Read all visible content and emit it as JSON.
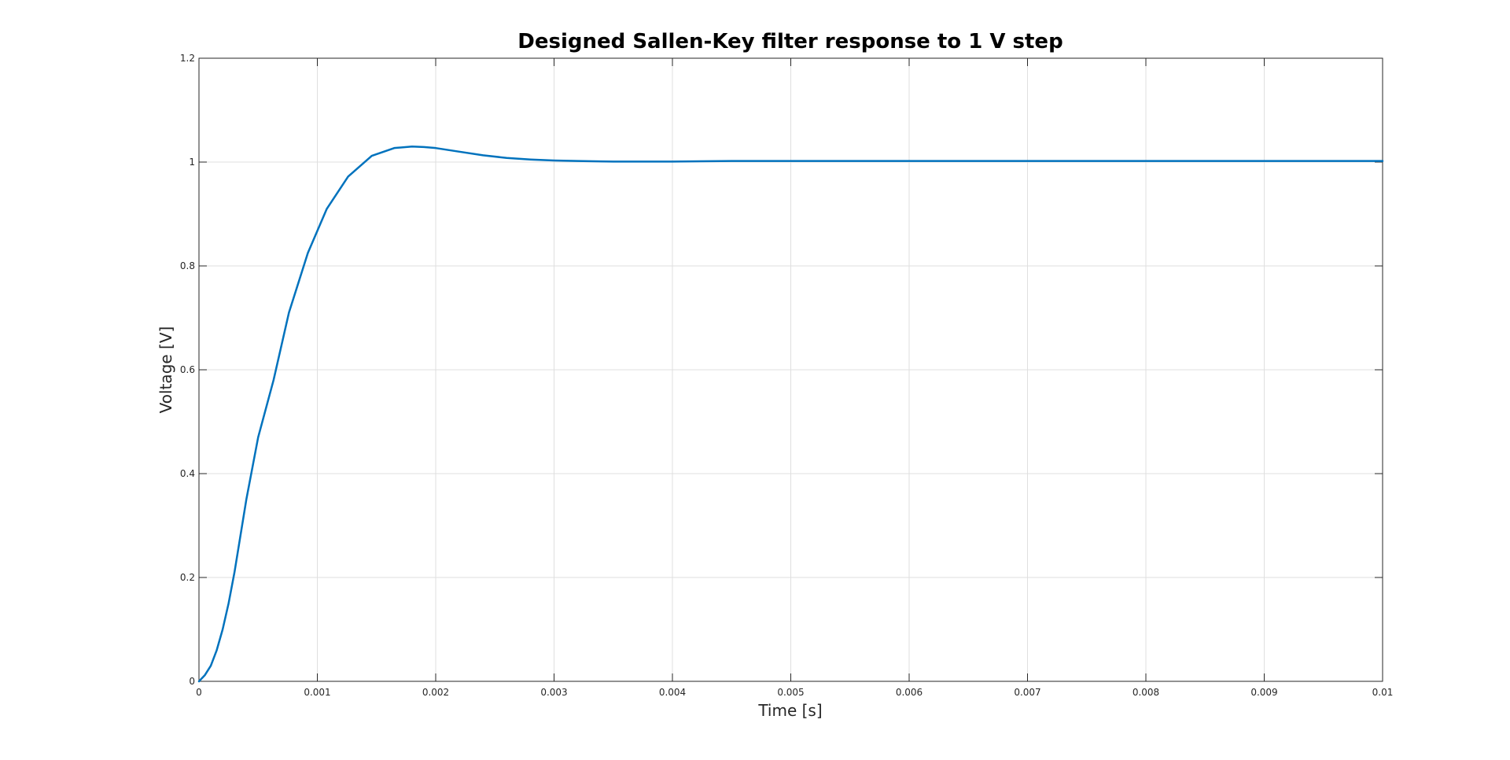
{
  "chart_data": {
    "type": "line",
    "title": "Designed Sallen-Key filter response to 1 V step",
    "xlabel": "Time [s]",
    "ylabel": "Voltage [V]",
    "xlim": [
      0,
      0.01
    ],
    "ylim": [
      0,
      1.2
    ],
    "x_ticks": [
      0,
      0.001,
      0.002,
      0.003,
      0.004,
      0.005,
      0.006,
      0.007,
      0.008,
      0.009,
      0.01
    ],
    "x_tick_labels": [
      "0",
      "0.001",
      "0.002",
      "0.003",
      "0.004",
      "0.005",
      "0.006",
      "0.007",
      "0.008",
      "0.009",
      "0.01"
    ],
    "y_ticks": [
      0,
      0.2,
      0.4,
      0.6,
      0.8,
      1.0,
      1.2
    ],
    "y_tick_labels": [
      "0",
      "0.2",
      "0.4",
      "0.6",
      "0.8",
      "1",
      "1.2"
    ],
    "grid": true,
    "legend": false,
    "series": [
      {
        "color": "#0072bd",
        "x": [
          0,
          5e-05,
          0.0001,
          0.00015,
          0.0002,
          0.00025,
          0.0003,
          0.00035,
          0.0004,
          0.0005,
          0.00063,
          0.00076,
          0.00092,
          0.00108,
          0.00126,
          0.00146,
          0.00165,
          0.0018,
          0.0019,
          0.002,
          0.0022,
          0.0024,
          0.0026,
          0.0028,
          0.003,
          0.0032,
          0.0035,
          0.004,
          0.0045,
          0.005,
          0.006,
          0.007,
          0.008,
          0.009,
          0.01
        ],
        "y": [
          0,
          0.012,
          0.03,
          0.06,
          0.1,
          0.15,
          0.21,
          0.28,
          0.35,
          0.47,
          0.58,
          0.71,
          0.825,
          0.91,
          0.972,
          1.012,
          1.027,
          1.03,
          1.029,
          1.027,
          1.02,
          1.013,
          1.008,
          1.005,
          1.003,
          1.002,
          1.001,
          1.001,
          1.002,
          1.002,
          1.002,
          1.002,
          1.002,
          1.002,
          1.002
        ]
      }
    ]
  }
}
